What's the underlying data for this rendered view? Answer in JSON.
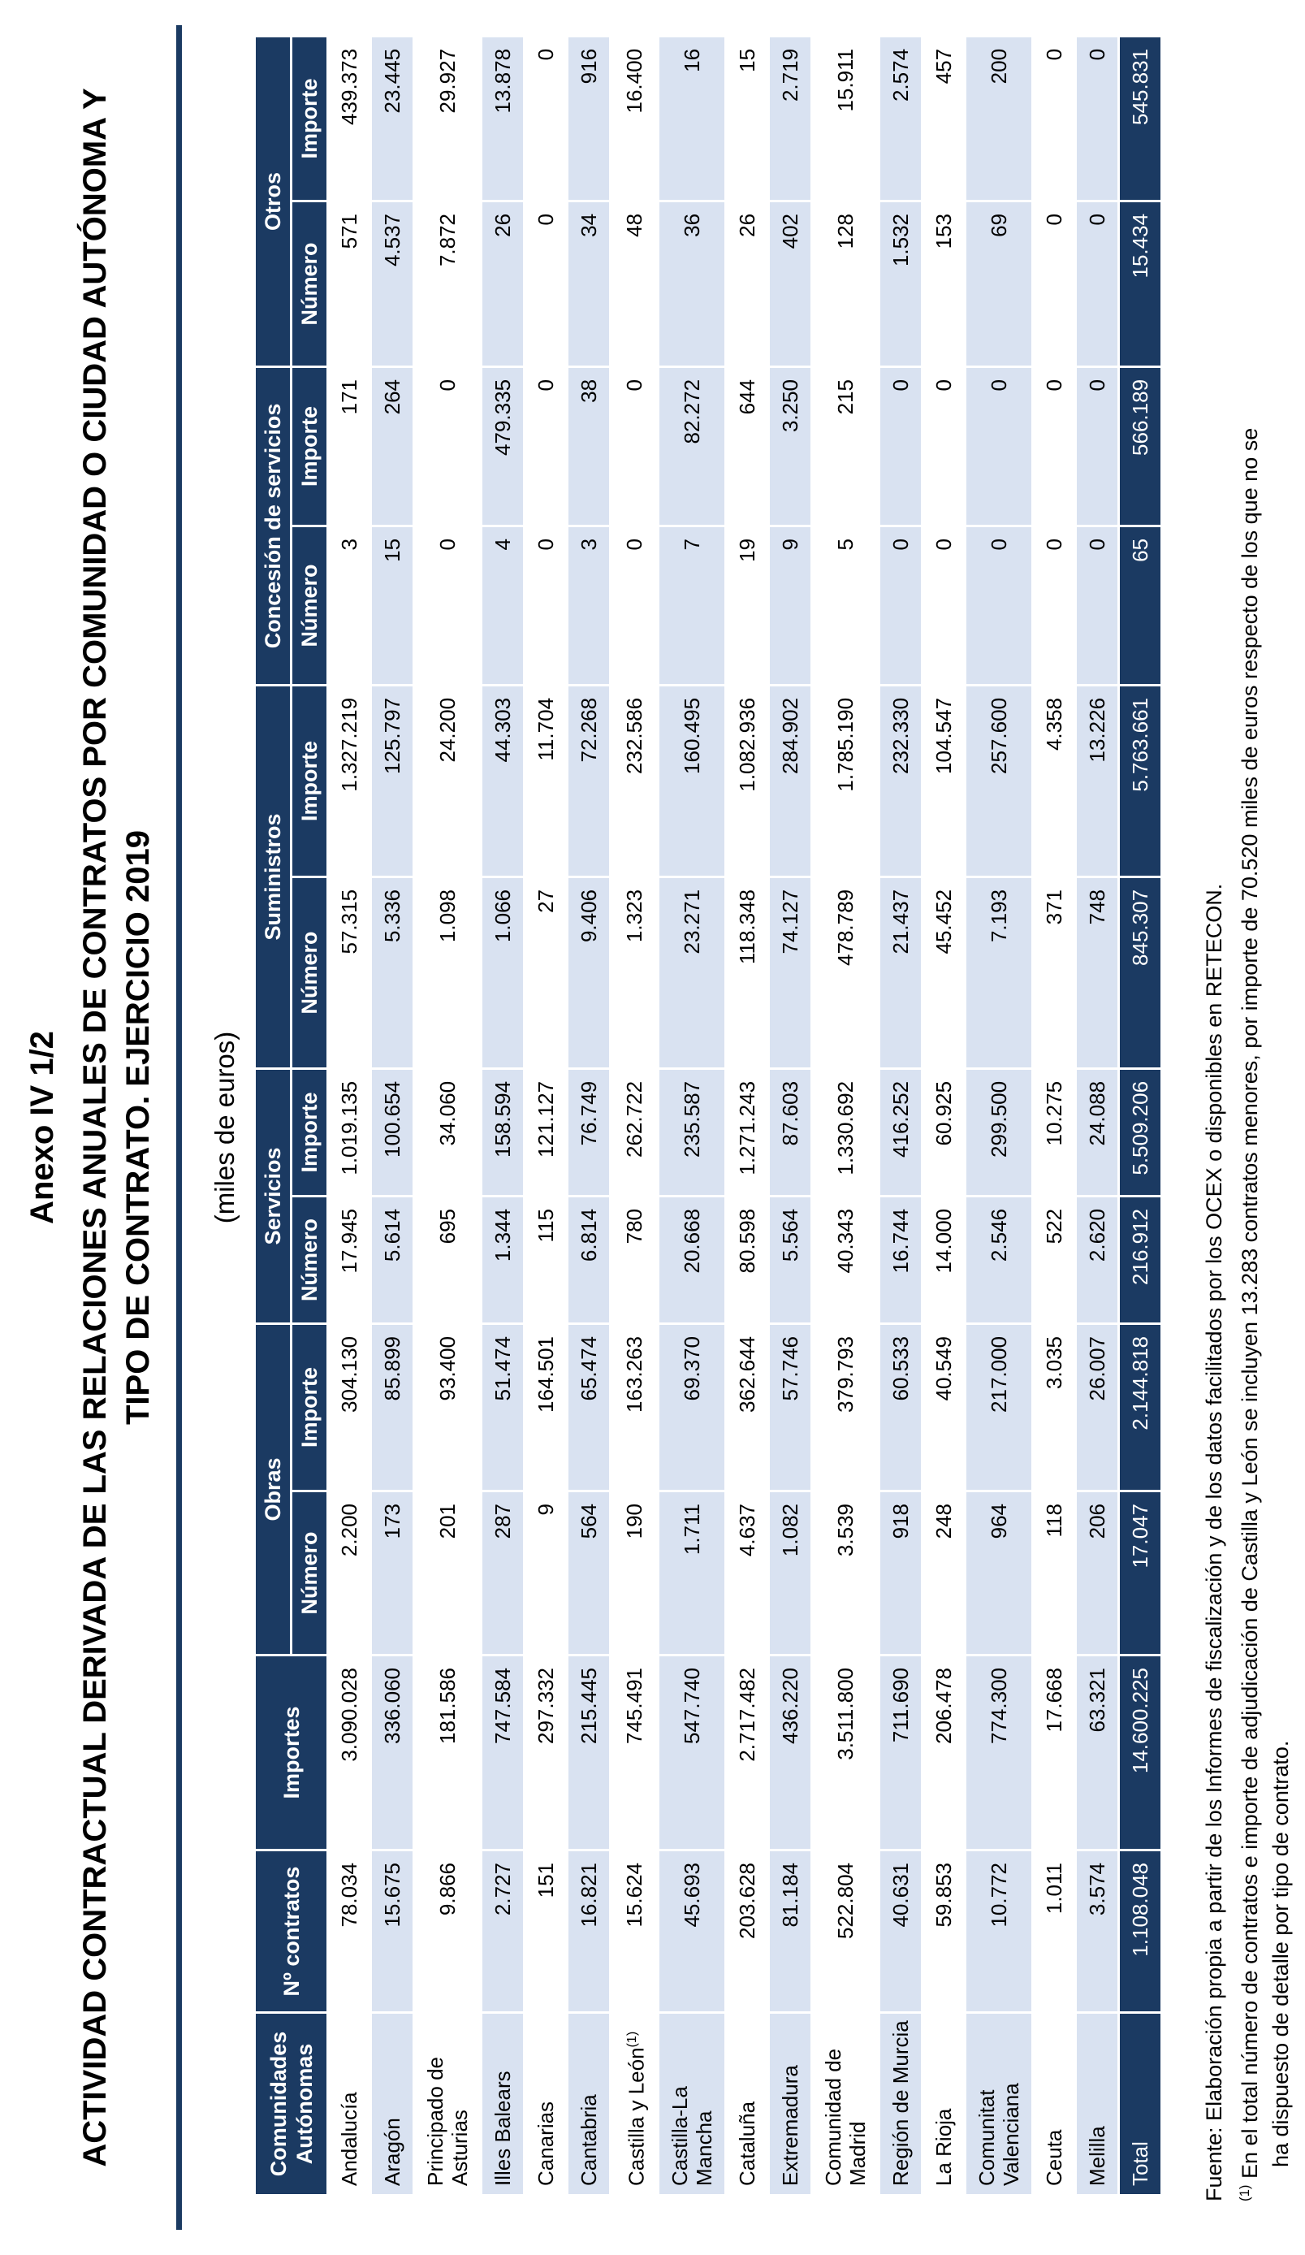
{
  "page": {
    "annex_label": "Anexo IV 1/2",
    "title_lines": [
      "ACTIVIDAD CONTRACTUAL DERIVADA DE LAS RELACIONES ANUALES DE CONTRATOS POR COMUNIDAD O CIUDAD AUTÓNOMA Y",
      "TIPO DE CONTRATO. EJERCICIO 2019"
    ],
    "units_note": "(miles de euros)"
  },
  "colors": {
    "header_bg": "#1B3A62",
    "total_bg": "#1B3A62",
    "alt_row_bg": "#D9E2F1",
    "row_bg": "#FFFFFF",
    "header_text": "#FFFFFF",
    "body_text": "#000000",
    "title_rule": "#1B3A62"
  },
  "table": {
    "headers": {
      "region": "Comunidades Autónomas",
      "n_contratos": "Nº contratos",
      "importes": "Importes",
      "groups": [
        {
          "label": "Obras"
        },
        {
          "label": "Servicios"
        },
        {
          "label": "Suministros"
        },
        {
          "label": "Concesión de servicios"
        },
        {
          "label": "Otros"
        }
      ],
      "sub_number": "Número",
      "sub_amount": "Importe"
    },
    "columns_order": [
      "Nº contratos",
      "Importes",
      "Obras Número",
      "Obras Importe",
      "Servicios Número",
      "Servicios Importe",
      "Suministros Número",
      "Suministros Importe",
      "Concesión de servicios Número",
      "Concesión de servicios Importe",
      "Otros Número",
      "Otros Importe"
    ],
    "rows": [
      {
        "name": "Andalucía",
        "values": [
          "78.034",
          "3.090.028",
          "2.200",
          "304.130",
          "17.945",
          "1.019.135",
          "57.315",
          "1.327.219",
          "3",
          "171",
          "571",
          "439.373"
        ]
      },
      {
        "name": "Aragón",
        "values": [
          "15.675",
          "336.060",
          "173",
          "85.899",
          "5.614",
          "100.654",
          "5.336",
          "125.797",
          "15",
          "264",
          "4.537",
          "23.445"
        ]
      },
      {
        "name": "Principado de Asturias",
        "values": [
          "9.866",
          "181.586",
          "201",
          "93.400",
          "695",
          "34.060",
          "1.098",
          "24.200",
          "0",
          "0",
          "7.872",
          "29.927"
        ]
      },
      {
        "name": "Illes Balears",
        "values": [
          "2.727",
          "747.584",
          "287",
          "51.474",
          "1.344",
          "158.594",
          "1.066",
          "44.303",
          "4",
          "479.335",
          "26",
          "13.878"
        ]
      },
      {
        "name": "Canarias",
        "values": [
          "151",
          "297.332",
          "9",
          "164.501",
          "115",
          "121.127",
          "27",
          "11.704",
          "0",
          "0",
          "0",
          "0"
        ]
      },
      {
        "name": "Cantabria",
        "values": [
          "16.821",
          "215.445",
          "564",
          "65.474",
          "6.814",
          "76.749",
          "9.406",
          "72.268",
          "3",
          "38",
          "34",
          "916"
        ]
      },
      {
        "name": "Castilla y León",
        "sup": "(1)",
        "values": [
          "15.624",
          "745.491",
          "190",
          "163.263",
          "780",
          "262.722",
          "1.323",
          "232.586",
          "0",
          "0",
          "48",
          "16.400"
        ]
      },
      {
        "name": "Castilla-La Mancha",
        "values": [
          "45.693",
          "547.740",
          "1.711",
          "69.370",
          "20.668",
          "235.587",
          "23.271",
          "160.495",
          "7",
          "82.272",
          "36",
          "16"
        ]
      },
      {
        "name": "Cataluña",
        "values": [
          "203.628",
          "2.717.482",
          "4.637",
          "362.644",
          "80.598",
          "1.271.243",
          "118.348",
          "1.082.936",
          "19",
          "644",
          "26",
          "15"
        ]
      },
      {
        "name": "Extremadura",
        "values": [
          "81.184",
          "436.220",
          "1.082",
          "57.746",
          "5.564",
          "87.603",
          "74.127",
          "284.902",
          "9",
          "3.250",
          "402",
          "2.719"
        ]
      },
      {
        "name": "Comunidad de Madrid",
        "values": [
          "522.804",
          "3.511.800",
          "3.539",
          "379.793",
          "40.343",
          "1.330.692",
          "478.789",
          "1.785.190",
          "5",
          "215",
          "128",
          "15.911"
        ]
      },
      {
        "name": "Región de Murcia",
        "values": [
          "40.631",
          "711.690",
          "918",
          "60.533",
          "16.744",
          "416.252",
          "21.437",
          "232.330",
          "0",
          "0",
          "1.532",
          "2.574"
        ]
      },
      {
        "name": "La Rioja",
        "values": [
          "59.853",
          "206.478",
          "248",
          "40.549",
          "14.000",
          "60.925",
          "45.452",
          "104.547",
          "0",
          "0",
          "153",
          "457"
        ]
      },
      {
        "name": "Comunitat Valenciana",
        "values": [
          "10.772",
          "774.300",
          "964",
          "217.000",
          "2.546",
          "299.500",
          "7.193",
          "257.600",
          "0",
          "0",
          "69",
          "200"
        ]
      },
      {
        "name": "Ceuta",
        "values": [
          "1.011",
          "17.668",
          "118",
          "3.035",
          "522",
          "10.275",
          "371",
          "4.358",
          "0",
          "0",
          "0",
          "0"
        ]
      },
      {
        "name": "Melilla",
        "values": [
          "3.574",
          "63.321",
          "206",
          "26.007",
          "2.620",
          "24.088",
          "748",
          "13.226",
          "0",
          "0",
          "0",
          "0"
        ]
      }
    ],
    "total": {
      "name": "Total",
      "values": [
        "1.108.048",
        "14.600.225",
        "17.047",
        "2.144.818",
        "216.912",
        "5.509.206",
        "845.307",
        "5.763.661",
        "65",
        "566.189",
        "15.434",
        "545.831"
      ]
    }
  },
  "footnotes": {
    "source": "Fuente: Elaboración propia a partir de los Informes de fiscalización y de los datos facilitados por los OCEX o disponibles en RETECON.",
    "note1_marker": "(1)",
    "note1_text": " En el total número de contratos e importe de adjudicación de Castilla y León se incluyen 13.283 contratos menores, por importe de 70.520 miles de euros respecto de los que no se",
    "note1_continuation": "ha dispuesto de detalle por tipo de contrato."
  }
}
